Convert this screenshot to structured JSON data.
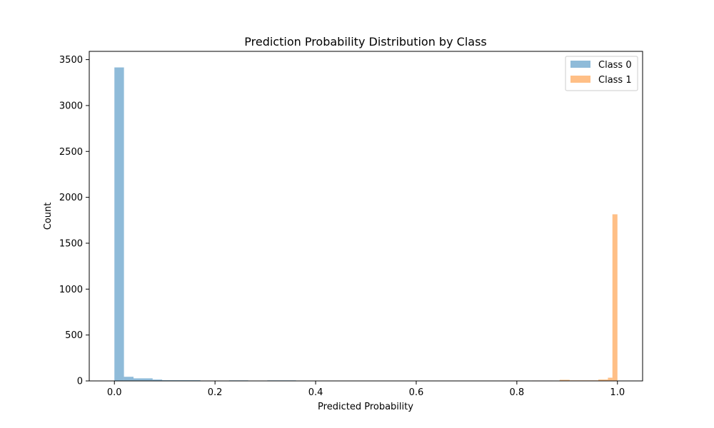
{
  "chart_data": {
    "type": "bar",
    "title": "Prediction Probability Distribution by Class",
    "xlabel": "Predicted Probability",
    "ylabel": "Count",
    "xlim": [
      -0.05,
      1.05
    ],
    "ylim": [
      0,
      3590
    ],
    "xticks": [
      0.0,
      0.2,
      0.4,
      0.6,
      0.8,
      1.0
    ],
    "xtick_labels": [
      "0.0",
      "0.2",
      "0.4",
      "0.6",
      "0.8",
      "1.0"
    ],
    "yticks": [
      0,
      500,
      1000,
      1500,
      2000,
      2500,
      3000,
      3500
    ],
    "ytick_labels": [
      "0",
      "500",
      "1000",
      "1500",
      "2000",
      "2500",
      "3000",
      "3500"
    ],
    "legend_position": "upper right",
    "grid": false,
    "series": [
      {
        "name": "Class 0",
        "color": "#1f77b4",
        "opacity": 0.5,
        "bins": [
          {
            "x0": 0.0,
            "x1": 0.019,
            "count": 3415
          },
          {
            "x0": 0.019,
            "x1": 0.038,
            "count": 45
          },
          {
            "x0": 0.038,
            "x1": 0.076,
            "count": 28
          },
          {
            "x0": 0.076,
            "x1": 0.095,
            "count": 15
          },
          {
            "x0": 0.095,
            "x1": 0.171,
            "count": 8
          },
          {
            "x0": 0.171,
            "x1": 0.19,
            "count": 4
          },
          {
            "x0": 0.19,
            "x1": 0.228,
            "count": 2
          },
          {
            "x0": 0.228,
            "x1": 0.266,
            "count": 6
          },
          {
            "x0": 0.266,
            "x1": 0.304,
            "count": 2
          },
          {
            "x0": 0.304,
            "x1": 0.361,
            "count": 6
          },
          {
            "x0": 0.361,
            "x1": 0.4,
            "count": 3
          }
        ]
      },
      {
        "name": "Class 1",
        "color": "#ff7f0e",
        "opacity": 0.5,
        "bins": [
          {
            "x0": 0.649,
            "x1": 0.668,
            "count": 3
          },
          {
            "x0": 0.77,
            "x1": 0.81,
            "count": 4
          },
          {
            "x0": 0.83,
            "x1": 0.87,
            "count": 4
          },
          {
            "x0": 0.885,
            "x1": 0.905,
            "count": 12
          },
          {
            "x0": 0.905,
            "x1": 0.962,
            "count": 6
          },
          {
            "x0": 0.962,
            "x1": 0.981,
            "count": 15
          },
          {
            "x0": 0.981,
            "x1": 0.99,
            "count": 35
          },
          {
            "x0": 0.99,
            "x1": 1.0,
            "count": 1815
          }
        ]
      }
    ]
  }
}
